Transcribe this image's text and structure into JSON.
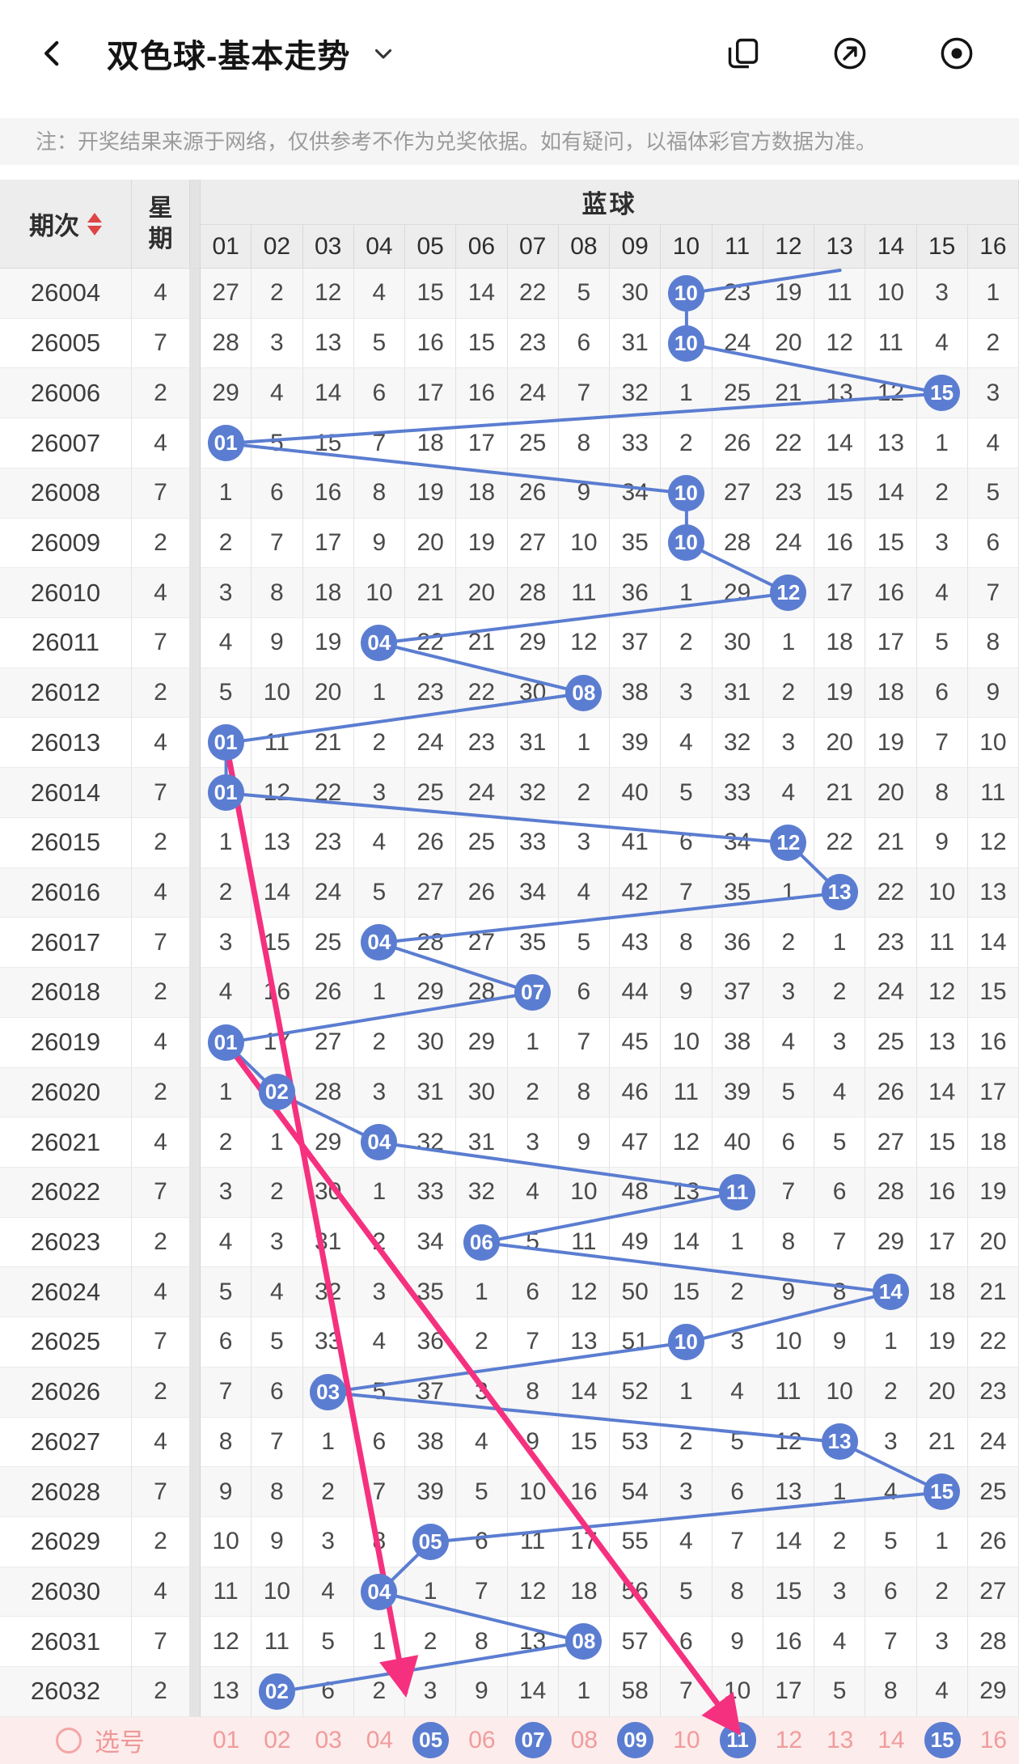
{
  "colors": {
    "accent_blue": "#5b7dd1",
    "accent_pink": "#f5317f",
    "footer_bg": "#fdecec",
    "footer_text": "#f09c9c",
    "note_bg": "#f5f5f5",
    "note_text": "#9b9b9b",
    "header_bg": "#ededed",
    "sort_red": "#de4545"
  },
  "icons": {
    "back": "chevron-left",
    "title_dropdown": "chevron-down",
    "action_1": "overlap-windows",
    "action_2": "compass-arrow",
    "action_3": "record-dot",
    "sort": "up-down-triangles",
    "pick": "circle-outline"
  },
  "header": {
    "title": "双色球-基本走势"
  },
  "notice": "注：开奖结果来源于网络，仅供参考不作为兑奖依据。如有疑问，以福体彩官方数据为准。",
  "table": {
    "issue_header": "期次",
    "week_header": "星期",
    "group_header": "蓝球",
    "ball_columns": [
      "01",
      "02",
      "03",
      "04",
      "05",
      "06",
      "07",
      "08",
      "09",
      "10",
      "11",
      "12",
      "13",
      "14",
      "15",
      "16"
    ],
    "rows": [
      {
        "issue": "26004",
        "week": "4",
        "hit": 9,
        "values": [
          "27",
          "2",
          "12",
          "4",
          "15",
          "14",
          "22",
          "5",
          "30",
          "10",
          "23",
          "19",
          "11",
          "10",
          "3",
          "1"
        ]
      },
      {
        "issue": "26005",
        "week": "7",
        "hit": 9,
        "values": [
          "28",
          "3",
          "13",
          "5",
          "16",
          "15",
          "23",
          "6",
          "31",
          "10",
          "24",
          "20",
          "12",
          "11",
          "4",
          "2"
        ]
      },
      {
        "issue": "26006",
        "week": "2",
        "hit": 14,
        "values": [
          "29",
          "4",
          "14",
          "6",
          "17",
          "16",
          "24",
          "7",
          "32",
          "1",
          "25",
          "21",
          "13",
          "12",
          "15",
          "3"
        ]
      },
      {
        "issue": "26007",
        "week": "4",
        "hit": 0,
        "values": [
          "01",
          "5",
          "15",
          "7",
          "18",
          "17",
          "25",
          "8",
          "33",
          "2",
          "26",
          "22",
          "14",
          "13",
          "1",
          "4"
        ]
      },
      {
        "issue": "26008",
        "week": "7",
        "hit": 9,
        "values": [
          "1",
          "6",
          "16",
          "8",
          "19",
          "18",
          "26",
          "9",
          "34",
          "10",
          "27",
          "23",
          "15",
          "14",
          "2",
          "5"
        ]
      },
      {
        "issue": "26009",
        "week": "2",
        "hit": 9,
        "values": [
          "2",
          "7",
          "17",
          "9",
          "20",
          "19",
          "27",
          "10",
          "35",
          "10",
          "28",
          "24",
          "16",
          "15",
          "3",
          "6"
        ]
      },
      {
        "issue": "26010",
        "week": "4",
        "hit": 11,
        "values": [
          "3",
          "8",
          "18",
          "10",
          "21",
          "20",
          "28",
          "11",
          "36",
          "1",
          "29",
          "12",
          "17",
          "16",
          "4",
          "7"
        ]
      },
      {
        "issue": "26011",
        "week": "7",
        "hit": 3,
        "values": [
          "4",
          "9",
          "19",
          "04",
          "22",
          "21",
          "29",
          "12",
          "37",
          "2",
          "30",
          "1",
          "18",
          "17",
          "5",
          "8"
        ]
      },
      {
        "issue": "26012",
        "week": "2",
        "hit": 7,
        "values": [
          "5",
          "10",
          "20",
          "1",
          "23",
          "22",
          "30",
          "08",
          "38",
          "3",
          "31",
          "2",
          "19",
          "18",
          "6",
          "9"
        ]
      },
      {
        "issue": "26013",
        "week": "4",
        "hit": 0,
        "values": [
          "01",
          "11",
          "21",
          "2",
          "24",
          "23",
          "31",
          "1",
          "39",
          "4",
          "32",
          "3",
          "20",
          "19",
          "7",
          "10"
        ]
      },
      {
        "issue": "26014",
        "week": "7",
        "hit": 0,
        "values": [
          "01",
          "12",
          "22",
          "3",
          "25",
          "24",
          "32",
          "2",
          "40",
          "5",
          "33",
          "4",
          "21",
          "20",
          "8",
          "11"
        ]
      },
      {
        "issue": "26015",
        "week": "2",
        "hit": 11,
        "values": [
          "1",
          "13",
          "23",
          "4",
          "26",
          "25",
          "33",
          "3",
          "41",
          "6",
          "34",
          "12",
          "22",
          "21",
          "9",
          "12"
        ]
      },
      {
        "issue": "26016",
        "week": "4",
        "hit": 12,
        "values": [
          "2",
          "14",
          "24",
          "5",
          "27",
          "26",
          "34",
          "4",
          "42",
          "7",
          "35",
          "1",
          "13",
          "22",
          "10",
          "13"
        ]
      },
      {
        "issue": "26017",
        "week": "7",
        "hit": 3,
        "values": [
          "3",
          "15",
          "25",
          "04",
          "28",
          "27",
          "35",
          "5",
          "43",
          "8",
          "36",
          "2",
          "1",
          "23",
          "11",
          "14"
        ]
      },
      {
        "issue": "26018",
        "week": "2",
        "hit": 6,
        "values": [
          "4",
          "16",
          "26",
          "1",
          "29",
          "28",
          "07",
          "6",
          "44",
          "9",
          "37",
          "3",
          "2",
          "24",
          "12",
          "15"
        ]
      },
      {
        "issue": "26019",
        "week": "4",
        "hit": 0,
        "values": [
          "01",
          "17",
          "27",
          "2",
          "30",
          "29",
          "1",
          "7",
          "45",
          "10",
          "38",
          "4",
          "3",
          "25",
          "13",
          "16"
        ]
      },
      {
        "issue": "26020",
        "week": "2",
        "hit": 1,
        "values": [
          "1",
          "02",
          "28",
          "3",
          "31",
          "30",
          "2",
          "8",
          "46",
          "11",
          "39",
          "5",
          "4",
          "26",
          "14",
          "17"
        ]
      },
      {
        "issue": "26021",
        "week": "4",
        "hit": 3,
        "values": [
          "2",
          "1",
          "29",
          "04",
          "32",
          "31",
          "3",
          "9",
          "47",
          "12",
          "40",
          "6",
          "5",
          "27",
          "15",
          "18"
        ]
      },
      {
        "issue": "26022",
        "week": "7",
        "hit": 10,
        "values": [
          "3",
          "2",
          "30",
          "1",
          "33",
          "32",
          "4",
          "10",
          "48",
          "13",
          "11",
          "7",
          "6",
          "28",
          "16",
          "19"
        ]
      },
      {
        "issue": "26023",
        "week": "2",
        "hit": 5,
        "values": [
          "4",
          "3",
          "31",
          "2",
          "34",
          "06",
          "5",
          "11",
          "49",
          "14",
          "1",
          "8",
          "7",
          "29",
          "17",
          "20"
        ]
      },
      {
        "issue": "26024",
        "week": "4",
        "hit": 13,
        "values": [
          "5",
          "4",
          "32",
          "3",
          "35",
          "1",
          "6",
          "12",
          "50",
          "15",
          "2",
          "9",
          "8",
          "14",
          "18",
          "21"
        ]
      },
      {
        "issue": "26025",
        "week": "7",
        "hit": 9,
        "values": [
          "6",
          "5",
          "33",
          "4",
          "36",
          "2",
          "7",
          "13",
          "51",
          "10",
          "3",
          "10",
          "9",
          "1",
          "19",
          "22"
        ]
      },
      {
        "issue": "26026",
        "week": "2",
        "hit": 2,
        "values": [
          "7",
          "6",
          "03",
          "5",
          "37",
          "3",
          "8",
          "14",
          "52",
          "1",
          "4",
          "11",
          "10",
          "2",
          "20",
          "23"
        ]
      },
      {
        "issue": "26027",
        "week": "4",
        "hit": 12,
        "values": [
          "8",
          "7",
          "1",
          "6",
          "38",
          "4",
          "9",
          "15",
          "53",
          "2",
          "5",
          "12",
          "13",
          "3",
          "21",
          "24"
        ]
      },
      {
        "issue": "26028",
        "week": "7",
        "hit": 14,
        "values": [
          "9",
          "8",
          "2",
          "7",
          "39",
          "5",
          "10",
          "16",
          "54",
          "3",
          "6",
          "13",
          "1",
          "4",
          "15",
          "25"
        ]
      },
      {
        "issue": "26029",
        "week": "2",
        "hit": 4,
        "values": [
          "10",
          "9",
          "3",
          "8",
          "05",
          "6",
          "11",
          "17",
          "55",
          "4",
          "7",
          "14",
          "2",
          "5",
          "1",
          "26"
        ]
      },
      {
        "issue": "26030",
        "week": "4",
        "hit": 3,
        "values": [
          "11",
          "10",
          "4",
          "04",
          "1",
          "7",
          "12",
          "18",
          "56",
          "5",
          "8",
          "15",
          "3",
          "6",
          "2",
          "27"
        ]
      },
      {
        "issue": "26031",
        "week": "7",
        "hit": 7,
        "values": [
          "12",
          "11",
          "5",
          "1",
          "2",
          "8",
          "13",
          "08",
          "57",
          "6",
          "9",
          "16",
          "4",
          "7",
          "3",
          "28"
        ]
      },
      {
        "issue": "26032",
        "week": "2",
        "hit": 1,
        "values": [
          "13",
          "02",
          "6",
          "2",
          "3",
          "9",
          "14",
          "1",
          "58",
          "7",
          "10",
          "17",
          "5",
          "8",
          "4",
          "29"
        ]
      }
    ]
  },
  "footer": {
    "label": "选号",
    "numbers": [
      "01",
      "02",
      "03",
      "04",
      "05",
      "06",
      "07",
      "08",
      "09",
      "10",
      "11",
      "12",
      "13",
      "14",
      "15",
      "16"
    ],
    "selected": [
      4,
      6,
      8,
      10,
      14
    ]
  },
  "trend": {
    "lead_in_col": 12,
    "arrows": [
      {
        "from_row": 9,
        "from_col": 0,
        "to_row": 28,
        "to_col": 3.5
      },
      {
        "from_row": 15,
        "from_col": 0,
        "to_footer_col": 10
      }
    ]
  }
}
